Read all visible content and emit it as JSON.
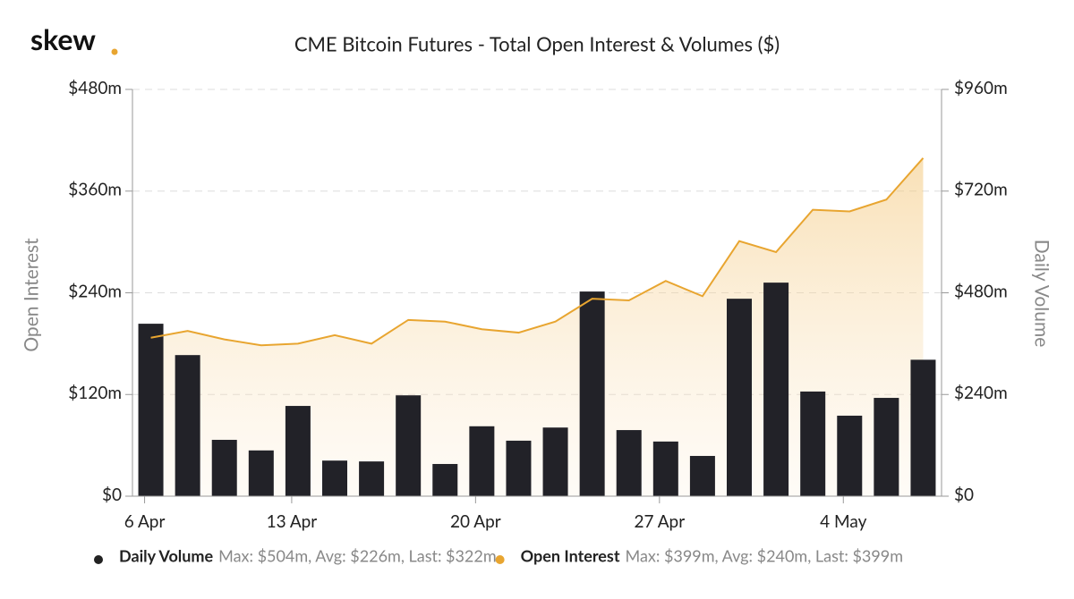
{
  "logo": "skew",
  "chart_data": {
    "type": "bar-area",
    "title": "CME Bitcoin Futures - Total Open Interest & Volumes ($)",
    "y_label": "Open Interest",
    "y2_label": "Daily Volume",
    "categories": [
      "6 Apr",
      null,
      null,
      null,
      "13 Apr",
      null,
      null,
      null,
      null,
      "20 Apr",
      null,
      null,
      null,
      null,
      "27 Apr",
      null,
      null,
      null,
      null,
      "4 May",
      null,
      null
    ],
    "ylim": [
      0,
      480
    ],
    "yticks": [
      {
        "value": 0,
        "label": "$0"
      },
      {
        "value": 120,
        "label": "$120m"
      },
      {
        "value": 240,
        "label": "$240m"
      },
      {
        "value": 360,
        "label": "$360m"
      },
      {
        "value": 480,
        "label": "$480m"
      }
    ],
    "y2lim": [
      0,
      960
    ],
    "y2ticks": [
      {
        "value": 0,
        "label": "$0"
      },
      {
        "value": 240,
        "label": "$240m"
      },
      {
        "value": 480,
        "label": "$480m"
      },
      {
        "value": 720,
        "label": "$720m"
      },
      {
        "value": 960,
        "label": "$960m"
      }
    ],
    "grid": true,
    "series": [
      {
        "name": "Daily Volume",
        "type": "bar",
        "axis": "y2",
        "color": "#222228",
        "summary": "Max: $504m, Avg: $226m, Last: $322m",
        "values": [
          407,
          333,
          133,
          108,
          213,
          84,
          82,
          238,
          76,
          165,
          131,
          162,
          483,
          156,
          129,
          95,
          466,
          504,
          247,
          190,
          232,
          322
        ]
      },
      {
        "name": "Open Interest",
        "type": "area",
        "axis": "y",
        "color": "#e8a530",
        "summary": "Max: $399m, Avg: $240m, Last: $399m",
        "values": [
          187,
          195,
          185,
          178,
          180,
          190,
          180,
          208,
          206,
          197,
          193,
          206,
          233,
          231,
          254,
          236,
          301,
          288,
          338,
          336,
          350,
          399
        ]
      }
    ]
  }
}
